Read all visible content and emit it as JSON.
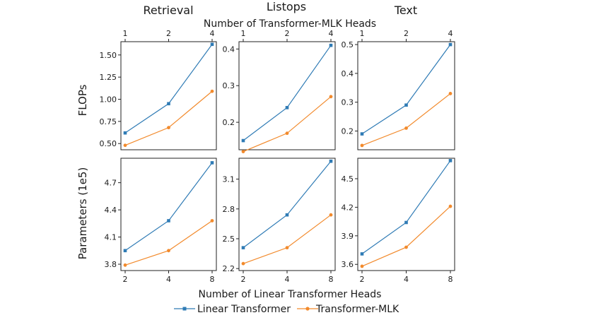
{
  "figure": {
    "top_axis_title": "Number of Transformer-MLK Heads",
    "bottom_axis_title": "Number of Linear Transformer Heads",
    "top_ticks": [
      "1",
      "2",
      "4"
    ],
    "bottom_ticks": [
      "2",
      "4",
      "8"
    ],
    "columns": [
      "Retrieval",
      "Listops",
      "Text"
    ],
    "rows": [
      "FLOPs",
      "Parameters (1e5)"
    ],
    "legend": [
      "Linear Transformer",
      "Transformer-MLK"
    ],
    "colors": {
      "linear": "#2f7bb5",
      "mlk": "#f28a2c"
    }
  },
  "chart_data": [
    {
      "type": "line",
      "panel": "Retrieval FLOPs",
      "x": [
        1,
        2,
        4
      ],
      "ylim": [
        0.43,
        1.65
      ],
      "yticks": [
        0.5,
        0.75,
        1.0,
        1.25,
        1.5
      ],
      "ytick_labels": [
        "0.50",
        "0.75",
        "1.00",
        "1.25",
        "1.50"
      ],
      "series": [
        {
          "name": "Linear Transformer",
          "values": [
            0.62,
            0.95,
            1.62
          ]
        },
        {
          "name": "Transformer-MLK",
          "values": [
            0.48,
            0.68,
            1.09
          ]
        }
      ]
    },
    {
      "type": "line",
      "panel": "Listops FLOPs",
      "x": [
        1,
        2,
        4
      ],
      "ylim": [
        0.125,
        0.42
      ],
      "yticks": [
        0.2,
        0.3,
        0.4
      ],
      "ytick_labels": [
        "0.2",
        "0.3",
        "0.4"
      ],
      "series": [
        {
          "name": "Linear Transformer",
          "values": [
            0.15,
            0.24,
            0.41
          ]
        },
        {
          "name": "Transformer-MLK",
          "values": [
            0.12,
            0.17,
            0.27
          ]
        }
      ]
    },
    {
      "type": "line",
      "panel": "Text FLOPs",
      "x": [
        1,
        2,
        4
      ],
      "ylim": [
        0.135,
        0.51
      ],
      "yticks": [
        0.2,
        0.3,
        0.4,
        0.5
      ],
      "ytick_labels": [
        "0.2",
        "0.3",
        "0.4",
        "0.5"
      ],
      "series": [
        {
          "name": "Linear Transformer",
          "values": [
            0.19,
            0.29,
            0.5
          ]
        },
        {
          "name": "Transformer-MLK",
          "values": [
            0.15,
            0.21,
            0.33
          ]
        }
      ]
    },
    {
      "type": "line",
      "panel": "Retrieval Parameters (1e5)",
      "x": [
        2,
        4,
        8
      ],
      "ylim": [
        3.73,
        4.97
      ],
      "yticks": [
        3.8,
        4.1,
        4.4,
        4.7
      ],
      "ytick_labels": [
        "3.8",
        "4.1",
        "4.4",
        "4.7"
      ],
      "series": [
        {
          "name": "Linear Transformer",
          "values": [
            3.95,
            4.28,
            4.92
          ]
        },
        {
          "name": "Transformer-MLK",
          "values": [
            3.79,
            3.95,
            4.28
          ]
        }
      ]
    },
    {
      "type": "line",
      "panel": "Listops Parameters (1e5)",
      "x": [
        2,
        4,
        8
      ],
      "ylim": [
        2.18,
        3.31
      ],
      "yticks": [
        2.2,
        2.5,
        2.8,
        3.1
      ],
      "ytick_labels": [
        "2.2",
        "2.5",
        "2.8",
        "3.1"
      ],
      "series": [
        {
          "name": "Linear Transformer",
          "values": [
            2.41,
            2.74,
            3.28
          ]
        },
        {
          "name": "Transformer-MLK",
          "values": [
            2.25,
            2.41,
            2.74
          ]
        }
      ]
    },
    {
      "type": "line",
      "panel": "Text Parameters (1e5)",
      "x": [
        2,
        4,
        8
      ],
      "ylim": [
        3.535,
        4.715
      ],
      "yticks": [
        3.6,
        3.9,
        4.2,
        4.5
      ],
      "ytick_labels": [
        "3.6",
        "3.9",
        "4.2",
        "4.5"
      ],
      "series": [
        {
          "name": "Linear Transformer",
          "values": [
            3.71,
            4.04,
            4.69
          ]
        },
        {
          "name": "Transformer-MLK",
          "values": [
            3.58,
            3.78,
            4.21
          ]
        }
      ]
    }
  ]
}
